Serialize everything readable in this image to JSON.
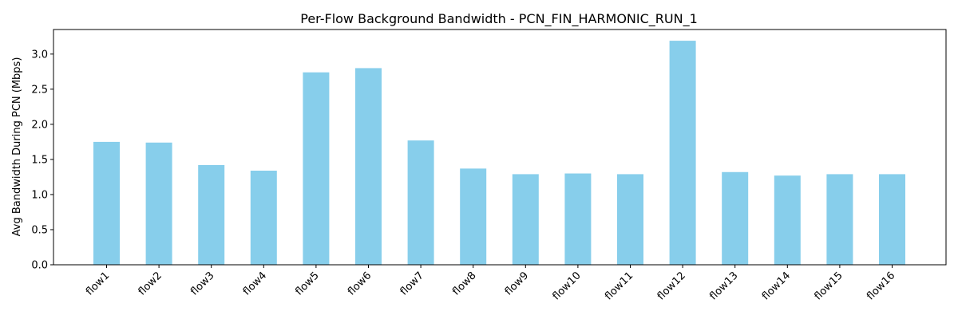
{
  "chart_data": {
    "type": "bar",
    "title": "Per-Flow Background Bandwidth - PCN_FIN_HARMONIC_RUN_1",
    "xlabel": "",
    "ylabel": "Avg Bandwidth During PCN (Mbps)",
    "categories": [
      "flow1",
      "flow2",
      "flow3",
      "flow4",
      "flow5",
      "flow6",
      "flow7",
      "flow8",
      "flow9",
      "flow10",
      "flow11",
      "flow12",
      "flow13",
      "flow14",
      "flow15",
      "flow16"
    ],
    "values": [
      1.75,
      1.74,
      1.42,
      1.34,
      2.74,
      2.8,
      1.77,
      1.37,
      1.29,
      1.3,
      1.29,
      3.19,
      1.32,
      1.27,
      1.29,
      1.29
    ],
    "ylim": [
      0,
      3.35
    ],
    "yticks": [
      "0.0",
      "0.5",
      "1.0",
      "1.5",
      "2.0",
      "2.5",
      "3.0"
    ],
    "bar_color": "#87ceeb",
    "grid": false,
    "xtick_rotation": 45
  }
}
